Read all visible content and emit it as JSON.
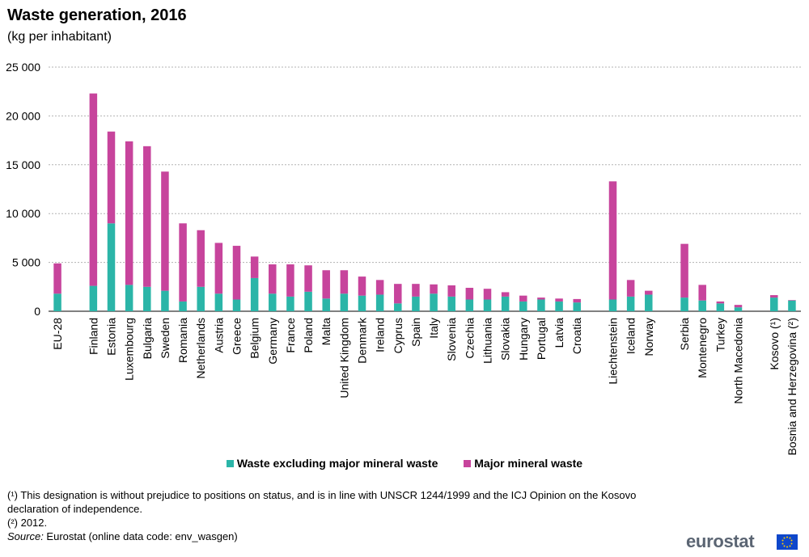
{
  "title": "Waste generation, 2016",
  "subtitle": "(kg per inhabitant)",
  "legend": {
    "series_1": "Waste excluding major mineral waste",
    "series_2": "Major mineral waste"
  },
  "footnotes": {
    "note_1": "(¹) This designation is without prejudice to positions on status, and is in line with UNSCR 1244/1999 and the ICJ Opinion on the Kosovo declaration of independence.",
    "note_2": "(²) 2012.",
    "source_label": "Source:",
    "source_text": " Eurostat (online data code: env_wasgen)"
  },
  "logo": {
    "text": "eurostat",
    "icon": "eu-flag-icon"
  },
  "chart_data": {
    "type": "bar",
    "stacked": true,
    "title": "Waste generation, 2016",
    "subtitle": "(kg per inhabitant)",
    "ylim": [
      0,
      25000
    ],
    "y_ticks": [
      0,
      5000,
      10000,
      15000,
      20000,
      25000
    ],
    "y_tick_labels": [
      "0",
      "5 000",
      "10 000",
      "15 000",
      "20 000",
      "25 000"
    ],
    "grid": true,
    "legend_position": "bottom",
    "colors": {
      "Waste excluding major mineral waste": "#2bb5a8",
      "Major mineral waste": "#c7449c"
    },
    "categories": [
      "EU-28",
      "",
      "Finland",
      "Estonia",
      "Luxembourg",
      "Bulgaria",
      "Sweden",
      "Romania",
      "Netherlands",
      "Austria",
      "Greece",
      "Belgium",
      "Germany",
      "France",
      "Poland",
      "Malta",
      "United Kingdom",
      "Denmark",
      "Ireland",
      "Cyprus",
      "Spain",
      "Italy",
      "Slovenia",
      "Czechia",
      "Lithuania",
      "Slovakia",
      "Hungary",
      "Portugal",
      "Latvia",
      "Croatia",
      "",
      "Liechtenstein",
      "Iceland",
      "Norway",
      "",
      "Serbia",
      "Montenegro",
      "Turkey",
      "North Macedonia",
      "",
      "Kosovo (¹)",
      "Bosnia and Herzegovina (²)"
    ],
    "series": [
      {
        "name": "Waste excluding major mineral waste",
        "values": [
          1800,
          null,
          2600,
          9000,
          2700,
          2500,
          2100,
          1000,
          2500,
          1800,
          1200,
          3400,
          1800,
          1500,
          2000,
          1300,
          1800,
          1600,
          1700,
          800,
          1500,
          1800,
          1500,
          1200,
          1200,
          1500,
          1000,
          1200,
          1000,
          900,
          null,
          1200,
          1500,
          1700,
          null,
          1400,
          1100,
          800,
          400,
          null,
          1400,
          1100
        ]
      },
      {
        "name": "Major mineral waste",
        "values": [
          3100,
          null,
          19700,
          9400,
          14700,
          14400,
          12200,
          8000,
          5800,
          5200,
          5500,
          2200,
          3000,
          3300,
          2700,
          2900,
          2400,
          1950,
          1500,
          2000,
          1300,
          950,
          1150,
          1200,
          1100,
          450,
          600,
          200,
          300,
          350,
          null,
          12100,
          1700,
          400,
          null,
          5500,
          1600,
          200,
          250,
          null,
          250,
          50
        ]
      }
    ]
  }
}
